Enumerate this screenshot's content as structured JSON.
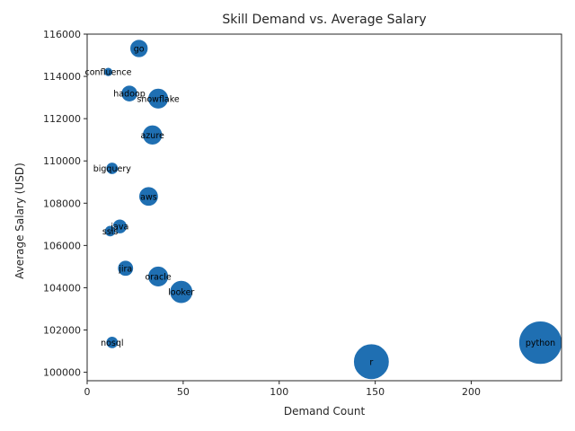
{
  "chart_data": {
    "type": "scatter",
    "title": "Skill Demand vs. Average Salary",
    "xlabel": "Demand Count",
    "ylabel": "Average Salary (USD)",
    "xlim": [
      0,
      247
    ],
    "ylim": [
      99600,
      116000
    ],
    "xticks": [
      0,
      50,
      100,
      150,
      200
    ],
    "yticks": [
      100000,
      102000,
      104000,
      106000,
      108000,
      110000,
      112000,
      114000,
      116000
    ],
    "grid": false,
    "legend": "none",
    "marker_color": "#1f6fb2",
    "size_encoding": "demand count",
    "points": [
      {
        "label": "go",
        "x": 27,
        "y": 115320
      },
      {
        "label": "confluence",
        "x": 11,
        "y": 114210
      },
      {
        "label": "hadoop",
        "x": 22,
        "y": 113190
      },
      {
        "label": "snowflake",
        "x": 37,
        "y": 112950
      },
      {
        "label": "azure",
        "x": 34,
        "y": 111230
      },
      {
        "label": "bigquery",
        "x": 13,
        "y": 109650
      },
      {
        "label": "aws",
        "x": 32,
        "y": 108320
      },
      {
        "label": "java",
        "x": 17,
        "y": 106900
      },
      {
        "label": "ssis",
        "x": 12,
        "y": 106680
      },
      {
        "label": "jira",
        "x": 20,
        "y": 104920
      },
      {
        "label": "oracle",
        "x": 37,
        "y": 104530
      },
      {
        "label": "looker",
        "x": 49,
        "y": 103800
      },
      {
        "label": "nosql",
        "x": 13,
        "y": 101410
      },
      {
        "label": "python",
        "x": 236,
        "y": 101400
      },
      {
        "label": "r",
        "x": 148,
        "y": 100500
      }
    ]
  }
}
